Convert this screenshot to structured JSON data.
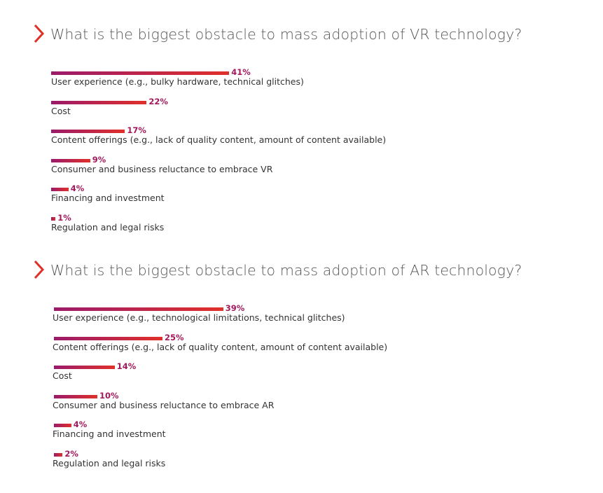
{
  "colors": {
    "bar_start": "#9b1a6b",
    "bar_end": "#e0302a",
    "percent_text": "#a3195b",
    "chevron": "#e0302a"
  },
  "chart_data": [
    {
      "type": "bar",
      "orientation": "horizontal",
      "title": "What is the biggest obstacle to mass adoption of VR technology?",
      "categories": [
        "User experience (e.g., bulky hardware, technical glitches)",
        "Cost",
        "Content offerings (e.g., lack of quality content, amount of content available)",
        "Consumer and business reluctance to embrace VR",
        "Financing and investment",
        "Regulation and legal risks"
      ],
      "values": [
        41,
        22,
        17,
        9,
        4,
        1
      ],
      "labels": [
        "41%",
        "22%",
        "17%",
        "9%",
        "4%",
        "1%"
      ],
      "unit": "%"
    },
    {
      "type": "bar",
      "orientation": "horizontal",
      "title": "What is the biggest obstacle to mass adoption of AR technology?",
      "categories": [
        "User experience (e.g., technological limitations, technical glitches)",
        "Content offerings (e.g., lack of quality content, amount of content available)",
        "Cost",
        "Consumer and business reluctance to embrace AR",
        "Financing and investment",
        "Regulation and legal risks"
      ],
      "values": [
        39,
        25,
        14,
        10,
        4,
        2
      ],
      "labels": [
        "39%",
        "25%",
        "14%",
        "10%",
        "4%",
        "2%"
      ],
      "unit": "%"
    }
  ]
}
